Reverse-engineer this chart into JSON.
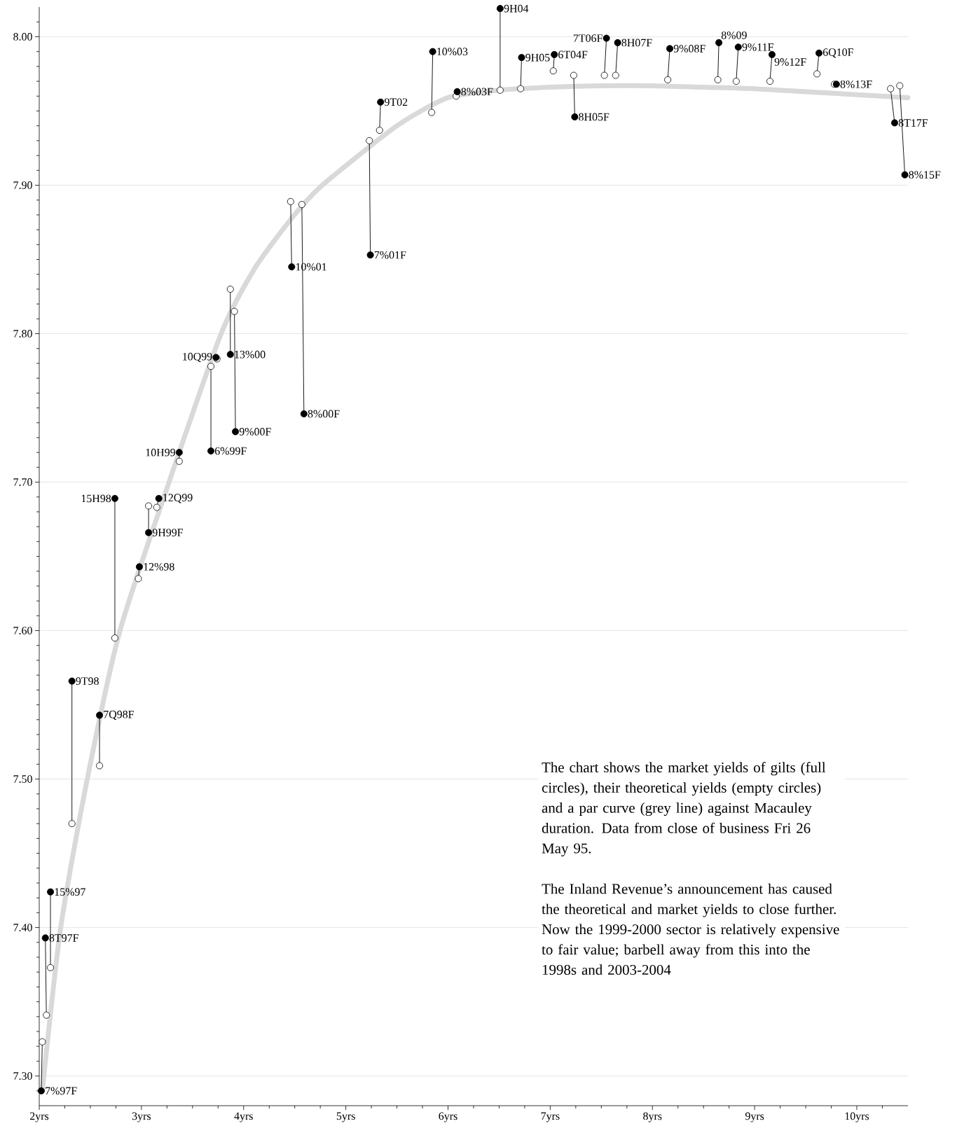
{
  "chart_data": {
    "type": "scatter",
    "xlim": [
      2,
      10.5
    ],
    "ylim": [
      7.28,
      8.02
    ],
    "grid": "y",
    "xticks": [
      {
        "value": 2,
        "label": "2yrs"
      },
      {
        "value": 2.25,
        "label": null
      },
      {
        "value": 2.5,
        "label": null
      },
      {
        "value": 2.75,
        "label": null
      },
      {
        "value": 3,
        "label": "3yrs"
      },
      {
        "value": 3.25,
        "label": null
      },
      {
        "value": 3.5,
        "label": null
      },
      {
        "value": 3.75,
        "label": null
      },
      {
        "value": 4,
        "label": "4yrs"
      },
      {
        "value": 4.25,
        "label": null
      },
      {
        "value": 4.5,
        "label": null
      },
      {
        "value": 4.75,
        "label": null
      },
      {
        "value": 5,
        "label": "5yrs"
      },
      {
        "value": 5.25,
        "label": null
      },
      {
        "value": 5.5,
        "label": null
      },
      {
        "value": 5.75,
        "label": null
      },
      {
        "value": 6,
        "label": "6yrs"
      },
      {
        "value": 6.25,
        "label": null
      },
      {
        "value": 6.5,
        "label": null
      },
      {
        "value": 6.75,
        "label": null
      },
      {
        "value": 7,
        "label": "7yrs"
      },
      {
        "value": 7.25,
        "label": null
      },
      {
        "value": 7.5,
        "label": null
      },
      {
        "value": 7.75,
        "label": null
      },
      {
        "value": 8,
        "label": "8yrs"
      },
      {
        "value": 8.25,
        "label": null
      },
      {
        "value": 8.5,
        "label": null
      },
      {
        "value": 8.75,
        "label": null
      },
      {
        "value": 9,
        "label": "9yrs"
      },
      {
        "value": 9.25,
        "label": null
      },
      {
        "value": 9.5,
        "label": null
      },
      {
        "value": 9.75,
        "label": null
      },
      {
        "value": 10,
        "label": "10yrs"
      },
      {
        "value": 10.25,
        "label": null
      }
    ],
    "yticks": [
      {
        "value": 7.29,
        "label": null
      },
      {
        "value": 7.3,
        "label": "7.30"
      },
      {
        "value": 7.31,
        "label": null
      },
      {
        "value": 7.32,
        "label": null
      },
      {
        "value": 7.33,
        "label": null
      },
      {
        "value": 7.34,
        "label": null
      },
      {
        "value": 7.35,
        "label": null
      },
      {
        "value": 7.36,
        "label": null
      },
      {
        "value": 7.37,
        "label": null
      },
      {
        "value": 7.38,
        "label": null
      },
      {
        "value": 7.39,
        "label": null
      },
      {
        "value": 7.4,
        "label": "7.40"
      },
      {
        "value": 7.41,
        "label": null
      },
      {
        "value": 7.42,
        "label": null
      },
      {
        "value": 7.43,
        "label": null
      },
      {
        "value": 7.44,
        "label": null
      },
      {
        "value": 7.45,
        "label": null
      },
      {
        "value": 7.46,
        "label": null
      },
      {
        "value": 7.47,
        "label": null
      },
      {
        "value": 7.48,
        "label": null
      },
      {
        "value": 7.49,
        "label": null
      },
      {
        "value": 7.5,
        "label": "7.50"
      },
      {
        "value": 7.51,
        "label": null
      },
      {
        "value": 7.52,
        "label": null
      },
      {
        "value": 7.53,
        "label": null
      },
      {
        "value": 7.54,
        "label": null
      },
      {
        "value": 7.55,
        "label": null
      },
      {
        "value": 7.56,
        "label": null
      },
      {
        "value": 7.57,
        "label": null
      },
      {
        "value": 7.58,
        "label": null
      },
      {
        "value": 7.59,
        "label": null
      },
      {
        "value": 7.6,
        "label": "7.60"
      },
      {
        "value": 7.61,
        "label": null
      },
      {
        "value": 7.62,
        "label": null
      },
      {
        "value": 7.63,
        "label": null
      },
      {
        "value": 7.64,
        "label": null
      },
      {
        "value": 7.65,
        "label": null
      },
      {
        "value": 7.66,
        "label": null
      },
      {
        "value": 7.67,
        "label": null
      },
      {
        "value": 7.68,
        "label": null
      },
      {
        "value": 7.69,
        "label": null
      },
      {
        "value": 7.7,
        "label": "7.70"
      },
      {
        "value": 7.71,
        "label": null
      },
      {
        "value": 7.72,
        "label": null
      },
      {
        "value": 7.73,
        "label": null
      },
      {
        "value": 7.74,
        "label": null
      },
      {
        "value": 7.75,
        "label": null
      },
      {
        "value": 7.76,
        "label": null
      },
      {
        "value": 7.77,
        "label": null
      },
      {
        "value": 7.78,
        "label": null
      },
      {
        "value": 7.79,
        "label": null
      },
      {
        "value": 7.8,
        "label": "7.80"
      },
      {
        "value": 7.81,
        "label": null
      },
      {
        "value": 7.82,
        "label": null
      },
      {
        "value": 7.83,
        "label": null
      },
      {
        "value": 7.84,
        "label": null
      },
      {
        "value": 7.85,
        "label": null
      },
      {
        "value": 7.86,
        "label": null
      },
      {
        "value": 7.87,
        "label": null
      },
      {
        "value": 7.88,
        "label": null
      },
      {
        "value": 7.89,
        "label": null
      },
      {
        "value": 7.9,
        "label": "7.90"
      },
      {
        "value": 7.91,
        "label": null
      },
      {
        "value": 7.92,
        "label": null
      },
      {
        "value": 7.93,
        "label": null
      },
      {
        "value": 7.94,
        "label": null
      },
      {
        "value": 7.95,
        "label": null
      },
      {
        "value": 7.96,
        "label": null
      },
      {
        "value": 7.97,
        "label": null
      },
      {
        "value": 7.98,
        "label": null
      },
      {
        "value": 7.99,
        "label": null
      },
      {
        "value": 8.0,
        "label": "8.00"
      },
      {
        "value": 8.01,
        "label": null
      }
    ],
    "series": [
      {
        "type": "line",
        "color": "#d9d9d9",
        "marker": "none",
        "x": [
          2.03,
          2.21,
          2.47,
          2.79,
          3.27,
          3.78,
          4.1,
          4.45,
          4.77,
          5.5,
          6.0,
          6.5,
          7.0,
          7.5,
          8.0,
          8.5,
          9.0,
          9.5,
          10.0,
          10.5
        ],
        "values": [
          7.29,
          7.4,
          7.5,
          7.6,
          7.7,
          7.8,
          7.843,
          7.876,
          7.9,
          7.94,
          7.959,
          7.964,
          7.966,
          7.967,
          7.967,
          7.966,
          7.965,
          7.963,
          7.961,
          7.959
        ]
      },
      {
        "type": "line",
        "color": "#000000",
        "marker": "none",
        "x": [
          2.02,
          2.03,
          null,
          2.06,
          2.07,
          null,
          2.11,
          2.11,
          null,
          2.32,
          2.32,
          null,
          2.59,
          2.59,
          null,
          2.74,
          2.74,
          null,
          2.98,
          2.97,
          null,
          3.07,
          3.07,
          null,
          3.17,
          3.15,
          null,
          3.37,
          3.37,
          null,
          3.68,
          3.68,
          null,
          null,
          null,
          null,
          3.87,
          3.87,
          null,
          3.92,
          3.91,
          null,
          4.47,
          4.46,
          null,
          4.59,
          4.57,
          null,
          5.24,
          5.23,
          null,
          5.34,
          5.33,
          null,
          5.85,
          5.84,
          null,
          6.09,
          6.08,
          null,
          6.51,
          6.51,
          null,
          6.72,
          6.71,
          null,
          7.04,
          7.03,
          null,
          7.24,
          7.23,
          null,
          7.55,
          7.53,
          null,
          7.66,
          7.64,
          null,
          8.17,
          8.15,
          null,
          8.65,
          8.64,
          null,
          8.84,
          8.82,
          null,
          9.17,
          9.15,
          null,
          9.63,
          9.61,
          null,
          null,
          null,
          null,
          10.37,
          10.33,
          null,
          10.47,
          10.42
        ],
        "values": [
          7.29,
          7.323,
          null,
          7.393,
          7.341,
          null,
          7.424,
          7.373,
          null,
          7.566,
          7.47,
          null,
          7.543,
          7.509,
          null,
          7.689,
          7.595,
          null,
          7.643,
          7.635,
          null,
          7.666,
          7.684,
          null,
          7.689,
          7.683,
          null,
          7.72,
          7.714,
          null,
          7.721,
          7.778,
          null,
          null,
          null,
          null,
          7.786,
          7.83,
          null,
          7.734,
          7.815,
          null,
          7.845,
          7.889,
          null,
          7.746,
          7.887,
          null,
          7.853,
          7.93,
          null,
          7.956,
          7.937,
          null,
          7.99,
          7.949,
          null,
          7.963,
          7.96,
          null,
          8.019,
          7.964,
          null,
          7.986,
          7.965,
          null,
          7.988,
          7.977,
          null,
          7.946,
          7.974,
          null,
          7.999,
          7.974,
          null,
          7.996,
          7.974,
          null,
          7.992,
          7.971,
          null,
          7.996,
          7.971,
          null,
          7.993,
          7.97,
          null,
          7.988,
          7.97,
          null,
          7.989,
          7.975,
          null,
          null,
          null,
          null,
          7.942,
          7.965,
          null,
          7.907,
          7.967
        ]
      },
      {
        "color": "#ffffff",
        "marker": "circle",
        "x": [
          2.03,
          2.07,
          2.11,
          2.32,
          2.59,
          2.74,
          2.97,
          3.07,
          3.15,
          3.37,
          3.68,
          3.74,
          3.87,
          3.91,
          4.46,
          4.57,
          5.23,
          5.33,
          5.84,
          6.08,
          6.51,
          6.71,
          7.03,
          7.23,
          7.53,
          7.64,
          8.15,
          8.64,
          8.82,
          9.15,
          9.61,
          9.78,
          10.33,
          10.42
        ],
        "values": [
          7.323,
          7.341,
          7.373,
          7.47,
          7.509,
          7.595,
          7.635,
          7.684,
          7.683,
          7.714,
          7.778,
          7.783,
          7.83,
          7.815,
          7.889,
          7.887,
          7.93,
          7.937,
          7.949,
          7.96,
          7.964,
          7.965,
          7.977,
          7.974,
          7.974,
          7.974,
          7.971,
          7.971,
          7.97,
          7.97,
          7.975,
          7.968,
          7.965,
          7.967
        ]
      },
      {
        "color": "#000000",
        "marker": "circle",
        "x": [
          2.02,
          2.06,
          2.11,
          2.32,
          2.59,
          2.74,
          2.98,
          3.07,
          3.17,
          3.37,
          3.68,
          3.73,
          3.87,
          3.92,
          4.47,
          4.59,
          5.24,
          5.34,
          5.85,
          6.09,
          6.51,
          6.72,
          7.04,
          7.24,
          7.55,
          7.66,
          8.17,
          8.65,
          8.84,
          9.17,
          9.63,
          9.8,
          10.37,
          10.47
        ],
        "values": [
          7.29,
          7.393,
          7.424,
          7.566,
          7.543,
          7.689,
          7.643,
          7.666,
          7.689,
          7.72,
          7.721,
          7.784,
          7.786,
          7.734,
          7.845,
          7.746,
          7.853,
          7.956,
          7.99,
          7.963,
          8.019,
          7.986,
          7.988,
          7.946,
          7.999,
          7.996,
          7.992,
          7.996,
          7.993,
          7.988,
          7.989,
          7.968,
          7.942,
          7.907
        ]
      }
    ],
    "annotations": [
      "The chart shows the market yields of gilts (full circles), their theoretical yields (empty circles) and a par curve (grey line) against Macauley duration. Data from close of business Fri 26 May 95.",
      "The Inland Revenue’s announcement has caused the theoretical and market yields to close further.  Now the 1999-2000 sector is relatively expensive to fair value; barbell away from this into the 1998s and 2003-2004",
      {
        "text": "7%97F",
        "x": 2.02,
        "y": 7.29
      },
      {
        "text": "8T97F",
        "x": 2.06,
        "y": 7.393
      },
      {
        "text": "15%97",
        "x": 2.11,
        "y": 7.424
      },
      {
        "text": "9T98",
        "x": 2.32,
        "y": 7.566
      },
      {
        "text": "7Q98F",
        "x": 2.59,
        "y": 7.543
      },
      {
        "text": "15H98",
        "x": 2.74,
        "y": 7.689
      },
      {
        "text": "12%98",
        "x": 2.98,
        "y": 7.643
      },
      {
        "text": "9H99F",
        "x": 3.07,
        "y": 7.666
      },
      {
        "text": "12Q99",
        "x": 3.17,
        "y": 7.689
      },
      {
        "text": "10H99",
        "x": 3.37,
        "y": 7.72
      },
      {
        "text": "6%99F",
        "x": 3.68,
        "y": 7.721
      },
      {
        "text": "10Q99",
        "x": 3.73,
        "y": 7.784
      },
      {
        "text": "13%00",
        "x": 3.87,
        "y": 7.786
      },
      {
        "text": "9%00F",
        "x": 3.92,
        "y": 7.734
      },
      {
        "text": "10%01",
        "x": 4.47,
        "y": 7.845
      },
      {
        "text": "8%00F",
        "x": 4.59,
        "y": 7.746
      },
      {
        "text": "7%01F",
        "x": 5.24,
        "y": 7.853
      },
      {
        "text": "9T02",
        "x": 5.34,
        "y": 7.956
      },
      {
        "text": "10%03",
        "x": 5.85,
        "y": 7.99
      },
      {
        "text": "8%03F",
        "x": 6.09,
        "y": 7.963
      },
      {
        "text": "9H04",
        "x": 6.51,
        "y": 8.019
      },
      {
        "text": "9H05",
        "x": 6.72,
        "y": 7.986
      },
      {
        "text": "6T04F",
        "x": 7.04,
        "y": 7.988
      },
      {
        "text": "8H05F",
        "x": 7.24,
        "y": 7.946
      },
      {
        "text": "7T06F",
        "x": 7.55,
        "y": 7.999
      },
      {
        "text": "8H07F",
        "x": 7.66,
        "y": 7.996
      },
      {
        "text": "9%08F",
        "x": 8.17,
        "y": 7.992
      },
      {
        "text": "8%09",
        "x": 8.65,
        "y": 7.996
      },
      {
        "text": "9%11F",
        "x": 8.84,
        "y": 7.993
      },
      {
        "text": "9%12F",
        "x": 9.17,
        "y": 7.988
      },
      {
        "text": "6Q10F",
        "x": 9.63,
        "y": 7.989
      },
      {
        "text": "8%13F",
        "x": 9.8,
        "y": 7.968
      },
      {
        "text": "8T17F",
        "x": 10.37,
        "y": 7.942
      },
      {
        "text": "8%15F",
        "x": 10.47,
        "y": 7.907
      }
    ]
  }
}
